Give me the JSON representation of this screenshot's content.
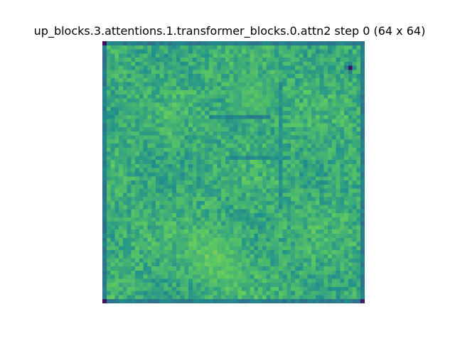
{
  "chart_data": {
    "type": "heatmap",
    "title": "up_blocks.3.attentions.1.transformer_blocks.0.attn2 step 0 (64 x 64)",
    "rows": 64,
    "cols": 64,
    "colormap": "viridis",
    "axes_visible": false,
    "grid": false,
    "legend": "none",
    "seed": 7,
    "value_range": [
      0,
      1
    ],
    "colormap_stops": [
      "#440154",
      "#3b528b",
      "#21918c",
      "#5ec962",
      "#fde725"
    ],
    "features": [
      {
        "kind": "base",
        "level": 0.62
      },
      {
        "kind": "edge_border",
        "level": 0.42,
        "width_cells": 1
      },
      {
        "kind": "corner_dark",
        "corner": "top-left",
        "level": 0.05
      },
      {
        "kind": "corner_dark",
        "corner": "bottom-left",
        "level": 0.05
      },
      {
        "kind": "corner_dark",
        "corner": "bottom-right",
        "level": 0.1
      },
      {
        "kind": "spot",
        "row": 6,
        "col": 60,
        "level": 0.05,
        "radius_cells": 1.5
      },
      {
        "kind": "bright_region",
        "row": 52,
        "col": 27,
        "level": 0.85,
        "radius_cells": 10
      },
      {
        "kind": "bright_region",
        "row": 14,
        "col": 36,
        "level": 0.78,
        "radius_cells": 8
      },
      {
        "kind": "dark_stroke",
        "row": 18,
        "col_start": 26,
        "col_end": 40,
        "level": 0.45
      },
      {
        "kind": "dark_stroke",
        "row": 28,
        "col_start": 30,
        "col_end": 45,
        "level": 0.48
      },
      {
        "kind": "dark_stroke_vertical",
        "col": 43,
        "row_start": 10,
        "row_end": 40,
        "level": 0.5
      }
    ]
  }
}
